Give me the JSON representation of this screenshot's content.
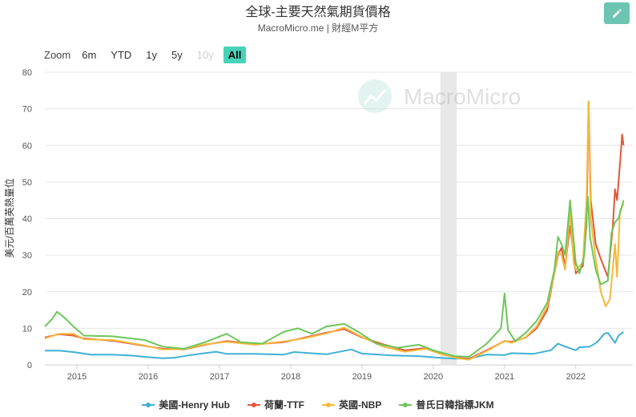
{
  "header": {
    "title": "全球-主要天然氣期貨價格",
    "subtitle": "MacroMicro.me | 財經M平方"
  },
  "toolbar": {
    "zoom_label": "Zoom",
    "ranges": [
      "6m",
      "YTD",
      "1y",
      "5y",
      "10y",
      "All"
    ],
    "active_range": "All",
    "disabled_ranges": [
      "10y"
    ],
    "edit_icon": "pencil-icon"
  },
  "watermark": {
    "text": "MacroMicro",
    "icon": "chart-line-logo-icon"
  },
  "colors": {
    "henry_hub": "#3fb0d6",
    "ttf": "#e0573a",
    "nbp": "#f6b83c",
    "jkm": "#6cc75a",
    "recession_band": "#e8e8e8"
  },
  "chart_data": {
    "type": "line",
    "ylabel": "美元/百萬英熱量位",
    "ylim": [
      0,
      80
    ],
    "yticks": [
      0,
      10,
      20,
      30,
      40,
      50,
      60,
      70,
      80
    ],
    "xlim": [
      2014.55,
      2022.8
    ],
    "xticks": [
      2015,
      2016,
      2017,
      2018,
      2019,
      2020,
      2021,
      2022
    ],
    "xtick_labels": [
      "2015",
      "2016",
      "2017",
      "2018",
      "2019",
      "2020",
      "2021",
      "2022"
    ],
    "shaded_periods": [
      [
        2020.1,
        2020.33
      ]
    ],
    "grid": true,
    "legend_position": "bottom",
    "series": [
      {
        "name": "美國-Henry Hub",
        "key": "henry_hub",
        "points": [
          [
            2014.55,
            3.9
          ],
          [
            2014.75,
            3.9
          ],
          [
            2014.95,
            3.5
          ],
          [
            2015.2,
            2.8
          ],
          [
            2015.5,
            2.8
          ],
          [
            2015.8,
            2.5
          ],
          [
            2015.95,
            2.2
          ],
          [
            2016.2,
            1.8
          ],
          [
            2016.35,
            1.9
          ],
          [
            2016.6,
            2.7
          ],
          [
            2016.95,
            3.6
          ],
          [
            2017.1,
            3.0
          ],
          [
            2017.5,
            3.0
          ],
          [
            2017.9,
            2.8
          ],
          [
            2018.05,
            3.5
          ],
          [
            2018.5,
            2.9
          ],
          [
            2018.85,
            4.2
          ],
          [
            2019.0,
            3.1
          ],
          [
            2019.4,
            2.6
          ],
          [
            2019.8,
            2.4
          ],
          [
            2020.1,
            1.9
          ],
          [
            2020.3,
            1.7
          ],
          [
            2020.5,
            1.7
          ],
          [
            2020.75,
            2.8
          ],
          [
            2021.0,
            2.7
          ],
          [
            2021.1,
            3.2
          ],
          [
            2021.4,
            3.0
          ],
          [
            2021.65,
            4.0
          ],
          [
            2021.75,
            5.8
          ],
          [
            2021.85,
            5.0
          ],
          [
            2022.0,
            4.0
          ],
          [
            2022.05,
            4.8
          ],
          [
            2022.2,
            5.0
          ],
          [
            2022.3,
            6.2
          ],
          [
            2022.4,
            8.5
          ],
          [
            2022.45,
            8.8
          ],
          [
            2022.55,
            6.0
          ],
          [
            2022.6,
            8.0
          ],
          [
            2022.67,
            9.0
          ]
        ]
      },
      {
        "name": "荷蘭-TTF",
        "key": "ttf",
        "points": [
          [
            2014.55,
            7.5
          ],
          [
            2014.75,
            8.4
          ],
          [
            2014.95,
            8.0
          ],
          [
            2015.1,
            7.2
          ],
          [
            2015.5,
            6.6
          ],
          [
            2015.95,
            5.2
          ],
          [
            2016.2,
            4.4
          ],
          [
            2016.5,
            4.2
          ],
          [
            2016.8,
            5.5
          ],
          [
            2017.1,
            6.5
          ],
          [
            2017.5,
            5.6
          ],
          [
            2017.9,
            6.2
          ],
          [
            2018.2,
            7.5
          ],
          [
            2018.5,
            8.8
          ],
          [
            2018.75,
            9.8
          ],
          [
            2019.0,
            7.5
          ],
          [
            2019.3,
            5.6
          ],
          [
            2019.6,
            4.0
          ],
          [
            2019.9,
            4.6
          ],
          [
            2020.1,
            3.2
          ],
          [
            2020.35,
            2.0
          ],
          [
            2020.5,
            1.6
          ],
          [
            2020.8,
            4.5
          ],
          [
            2021.0,
            6.5
          ],
          [
            2021.1,
            6.3
          ],
          [
            2021.3,
            7.5
          ],
          [
            2021.45,
            10.0
          ],
          [
            2021.6,
            15.0
          ],
          [
            2021.7,
            25.0
          ],
          [
            2021.75,
            30.0
          ],
          [
            2021.8,
            32.0
          ],
          [
            2021.85,
            27.0
          ],
          [
            2021.92,
            38.0
          ],
          [
            2021.97,
            30.0
          ],
          [
            2022.0,
            25.0
          ],
          [
            2022.1,
            27.0
          ],
          [
            2022.15,
            38.0
          ],
          [
            2022.18,
            72.0
          ],
          [
            2022.21,
            45.0
          ],
          [
            2022.28,
            33.0
          ],
          [
            2022.35,
            29.0
          ],
          [
            2022.45,
            24.0
          ],
          [
            2022.52,
            38.0
          ],
          [
            2022.55,
            48.0
          ],
          [
            2022.58,
            45.0
          ],
          [
            2022.62,
            55.0
          ],
          [
            2022.65,
            63.0
          ],
          [
            2022.67,
            60.0
          ]
        ]
      },
      {
        "name": "英國-NBP",
        "key": "nbp",
        "points": [
          [
            2014.55,
            7.2
          ],
          [
            2014.75,
            8.5
          ],
          [
            2014.95,
            8.5
          ],
          [
            2015.1,
            7.0
          ],
          [
            2015.5,
            6.8
          ],
          [
            2015.95,
            5.3
          ],
          [
            2016.2,
            4.2
          ],
          [
            2016.5,
            4.3
          ],
          [
            2016.8,
            5.6
          ],
          [
            2017.1,
            6.3
          ],
          [
            2017.5,
            5.5
          ],
          [
            2017.9,
            6.4
          ],
          [
            2018.2,
            7.3
          ],
          [
            2018.5,
            8.6
          ],
          [
            2018.75,
            10.2
          ],
          [
            2019.0,
            7.6
          ],
          [
            2019.3,
            5.0
          ],
          [
            2019.6,
            3.6
          ],
          [
            2019.9,
            4.4
          ],
          [
            2020.1,
            3.0
          ],
          [
            2020.35,
            1.8
          ],
          [
            2020.5,
            1.4
          ],
          [
            2020.8,
            4.3
          ],
          [
            2021.0,
            6.6
          ],
          [
            2021.1,
            6.0
          ],
          [
            2021.3,
            7.6
          ],
          [
            2021.45,
            10.5
          ],
          [
            2021.6,
            16.0
          ],
          [
            2021.7,
            25.0
          ],
          [
            2021.75,
            31.0
          ],
          [
            2021.8,
            30.0
          ],
          [
            2021.85,
            26.0
          ],
          [
            2021.92,
            42.0
          ],
          [
            2021.97,
            28.0
          ],
          [
            2022.0,
            26.0
          ],
          [
            2022.1,
            28.0
          ],
          [
            2022.15,
            45.0
          ],
          [
            2022.18,
            72.0
          ],
          [
            2022.21,
            40.0
          ],
          [
            2022.28,
            29.0
          ],
          [
            2022.35,
            20.0
          ],
          [
            2022.42,
            16.0
          ],
          [
            2022.48,
            18.0
          ],
          [
            2022.55,
            33.0
          ],
          [
            2022.58,
            24.0
          ],
          [
            2022.62,
            42.0
          ],
          [
            2022.67,
            44.0
          ]
        ]
      },
      {
        "name": "普氏日韓指標JKM",
        "key": "jkm",
        "points": [
          [
            2014.55,
            10.5
          ],
          [
            2014.65,
            12.5
          ],
          [
            2014.72,
            14.5
          ],
          [
            2014.82,
            13.0
          ],
          [
            2014.95,
            10.5
          ],
          [
            2015.1,
            8.0
          ],
          [
            2015.5,
            7.8
          ],
          [
            2015.95,
            6.8
          ],
          [
            2016.2,
            5.0
          ],
          [
            2016.5,
            4.4
          ],
          [
            2016.8,
            6.2
          ],
          [
            2017.1,
            8.5
          ],
          [
            2017.3,
            6.2
          ],
          [
            2017.6,
            5.8
          ],
          [
            2017.9,
            9.0
          ],
          [
            2018.1,
            10.0
          ],
          [
            2018.3,
            8.5
          ],
          [
            2018.5,
            10.5
          ],
          [
            2018.75,
            11.2
          ],
          [
            2018.95,
            9.0
          ],
          [
            2019.2,
            5.8
          ],
          [
            2019.5,
            4.7
          ],
          [
            2019.8,
            5.5
          ],
          [
            2020.0,
            4.0
          ],
          [
            2020.3,
            2.4
          ],
          [
            2020.5,
            2.2
          ],
          [
            2020.75,
            5.8
          ],
          [
            2020.95,
            10.0
          ],
          [
            2021.0,
            19.5
          ],
          [
            2021.05,
            9.5
          ],
          [
            2021.15,
            6.5
          ],
          [
            2021.3,
            8.8
          ],
          [
            2021.45,
            12.0
          ],
          [
            2021.6,
            17.0
          ],
          [
            2021.7,
            26.0
          ],
          [
            2021.75,
            35.0
          ],
          [
            2021.8,
            33.0
          ],
          [
            2021.85,
            30.0
          ],
          [
            2021.92,
            45.0
          ],
          [
            2021.97,
            34.0
          ],
          [
            2022.0,
            28.0
          ],
          [
            2022.05,
            25.0
          ],
          [
            2022.12,
            30.0
          ],
          [
            2022.17,
            46.0
          ],
          [
            2022.2,
            35.0
          ],
          [
            2022.28,
            26.0
          ],
          [
            2022.35,
            22.0
          ],
          [
            2022.45,
            23.0
          ],
          [
            2022.5,
            36.0
          ],
          [
            2022.55,
            39.0
          ],
          [
            2022.6,
            40.0
          ],
          [
            2022.67,
            45.0
          ]
        ]
      }
    ]
  }
}
